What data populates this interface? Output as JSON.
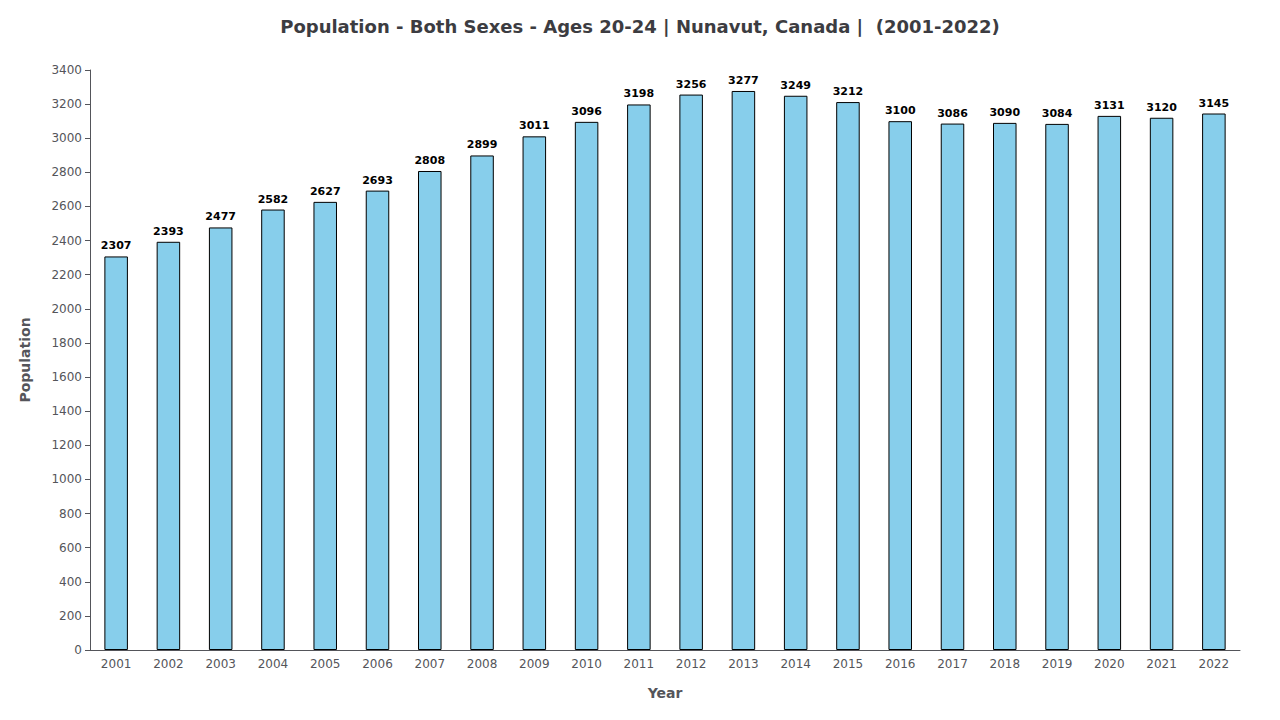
{
  "chart_data": {
    "type": "bar",
    "title": "Population - Both Sexes - Ages 20-24 | Nunavut, Canada |  (2001-2022)",
    "x_label": "Year",
    "y_label": "Population",
    "categories": [
      "2001",
      "2002",
      "2003",
      "2004",
      "2005",
      "2006",
      "2007",
      "2008",
      "2009",
      "2010",
      "2011",
      "2012",
      "2013",
      "2014",
      "2015",
      "2016",
      "2017",
      "2018",
      "2019",
      "2020",
      "2021",
      "2022"
    ],
    "values": [
      2307,
      2393,
      2477,
      2582,
      2627,
      2693,
      2808,
      2899,
      3011,
      3096,
      3198,
      3256,
      3277,
      3249,
      3212,
      3100,
      3086,
      3090,
      3084,
      3131,
      3120,
      3145
    ],
    "color": "#87CEEB",
    "ylim": [
      0,
      3400
    ],
    "yticks": [
      0,
      200,
      400,
      600,
      800,
      1000,
      1200,
      1400,
      1600,
      1800,
      2000,
      2200,
      2400,
      2600,
      2800,
      3000,
      3200,
      3400
    ],
    "grid": false,
    "data_labels": true
  }
}
